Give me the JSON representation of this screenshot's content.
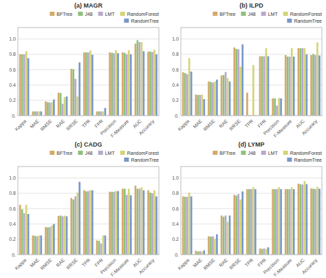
{
  "chart_data": [
    {
      "type": "bar",
      "title": "(a) MAGR",
      "categories": [
        "Kappa",
        "MAE",
        "RMSE",
        "RAE",
        "RRSE",
        "TPR",
        "FPR",
        "Precision",
        "F-Measure",
        "AUC",
        "Accuracy"
      ],
      "series": [
        {
          "name": "BFTree",
          "color": "#d4a96a",
          "values": [
            0.8,
            0.055,
            0.185,
            0.3,
            0.61,
            0.825,
            0.055,
            0.825,
            0.825,
            0.94,
            0.835
          ]
        },
        {
          "name": "J48",
          "color": "#8dc07c",
          "values": [
            0.8,
            0.055,
            0.175,
            0.295,
            0.605,
            0.825,
            0.055,
            0.82,
            0.82,
            0.985,
            0.835
          ]
        },
        {
          "name": "LMT",
          "color": "#b8a8cc",
          "values": [
            0.8,
            0.055,
            0.17,
            0.155,
            0.48,
            0.825,
            0.055,
            0.815,
            0.8,
            0.96,
            0.83
          ]
        },
        {
          "name": "RandomForest",
          "color": "#d4d478",
          "values": [
            0.84,
            0.055,
            0.175,
            0.24,
            0.25,
            0.85,
            0.055,
            0.855,
            0.855,
            0.96,
            0.86
          ]
        },
        {
          "name": "RandomTree",
          "color": "#7898c8",
          "values": [
            0.75,
            0.055,
            0.21,
            0.25,
            0.695,
            0.795,
            0.1,
            0.815,
            0.8,
            0.84,
            0.8
          ]
        }
      ],
      "ylim": [
        0,
        1.15
      ],
      "yticks": [
        {
          "value": 0,
          "label": "0."
        },
        0.2,
        0.4,
        0.6,
        0.8,
        {
          "value": 1,
          "label": "1.0"
        }
      ],
      "grid": true,
      "legend": "upper right"
    },
    {
      "type": "bar",
      "title": "(b) ILPD",
      "categories": [
        "Kappa",
        "MAE",
        "RMSE",
        "RAE",
        "RRSE",
        "TPR",
        "FPR",
        "Precision",
        "F-Measure",
        "AUC",
        "Accuracy"
      ],
      "series": [
        {
          "name": "BFTree",
          "color": "#d4a96a",
          "values": [
            0.565,
            0.275,
            0.445,
            0.525,
            0.89,
            0.3,
            0.775,
            0.225,
            0.79,
            0.88,
            0.79
          ]
        },
        {
          "name": "J48",
          "color": "#8dc07c",
          "values": [
            0.555,
            0.27,
            0.44,
            0.53,
            0.87,
            0.005,
            0.775,
            0.225,
            0.77,
            0.88,
            0.805
          ]
        },
        {
          "name": "LMT",
          "color": "#b8a8cc",
          "values": [
            0.54,
            0.27,
            0.43,
            0.57,
            0.865,
            0.005,
            0.775,
            0.13,
            0.77,
            0.88,
            0.79
          ]
        },
        {
          "name": "RandomForest",
          "color": "#d4d478",
          "values": [
            0.75,
            0.275,
            0.445,
            0.49,
            0.64,
            0.66,
            0.88,
            0.23,
            0.88,
            0.88,
            0.955
          ]
        },
        {
          "name": "RandomTree",
          "color": "#7898c8",
          "values": [
            0.575,
            0.215,
            0.47,
            0.445,
            0.93,
            0.005,
            0.775,
            0.225,
            0.77,
            0.8,
            0.785
          ]
        }
      ],
      "ylim": [
        0,
        1.15
      ],
      "yticks": [
        {
          "value": 0,
          "label": "0."
        },
        0.2,
        0.4,
        0.6,
        0.8,
        {
          "value": 1,
          "label": "1.0"
        }
      ],
      "grid": true,
      "legend": "upper right"
    },
    {
      "type": "bar",
      "title": "(c) CADG",
      "categories": [
        "Kappa",
        "MAE",
        "RMSE",
        "RAE",
        "RRSE",
        "TPR",
        "FPR",
        "Precision",
        "F-Measure",
        "AUC",
        "Accuracy"
      ],
      "series": [
        {
          "name": "BFTree",
          "color": "#d4a96a",
          "values": [
            0.65,
            0.25,
            0.36,
            0.505,
            0.74,
            0.84,
            0.185,
            0.82,
            0.86,
            0.9,
            0.84
          ]
        },
        {
          "name": "J48",
          "color": "#8dc07c",
          "values": [
            0.59,
            0.245,
            0.355,
            0.51,
            0.72,
            0.825,
            0.18,
            0.82,
            0.86,
            0.86,
            0.81
          ]
        },
        {
          "name": "LMT",
          "color": "#b8a8cc",
          "values": [
            0.54,
            0.24,
            0.36,
            0.5,
            0.76,
            0.83,
            0.145,
            0.82,
            0.78,
            0.86,
            0.8
          ]
        },
        {
          "name": "RandomForest",
          "color": "#d4d478",
          "values": [
            0.65,
            0.25,
            0.38,
            0.51,
            0.81,
            0.84,
            0.25,
            0.83,
            0.86,
            0.88,
            0.84
          ]
        },
        {
          "name": "RandomTree",
          "color": "#7898c8",
          "values": [
            0.53,
            0.25,
            0.4,
            0.5,
            0.95,
            0.84,
            0.25,
            0.83,
            0.775,
            0.84,
            0.76
          ]
        }
      ],
      "ylim": [
        0,
        1.15
      ],
      "yticks": [
        {
          "value": 0,
          "label": "0."
        },
        0.2,
        0.4,
        0.6,
        0.8,
        {
          "value": 1,
          "label": "1.0"
        }
      ],
      "grid": true,
      "legend": "upper right"
    },
    {
      "type": "bar",
      "title": "(d) LYMP",
      "categories": [
        "Kappa",
        "MAE",
        "RMSE",
        "RAE",
        "RRSE",
        "TPR",
        "FPR",
        "Precision",
        "F-Measure",
        "AUC",
        "Accuracy"
      ],
      "series": [
        {
          "name": "BFTree",
          "color": "#d4a96a",
          "values": [
            0.76,
            0.05,
            0.24,
            0.51,
            0.78,
            0.855,
            0.08,
            0.855,
            0.855,
            0.925,
            0.865
          ]
        },
        {
          "name": "J48",
          "color": "#8dc07c",
          "values": [
            0.755,
            0.04,
            0.235,
            0.495,
            0.77,
            0.855,
            0.075,
            0.855,
            0.855,
            0.92,
            0.86
          ]
        },
        {
          "name": "LMT",
          "color": "#b8a8cc",
          "values": [
            0.755,
            0.045,
            0.24,
            0.51,
            0.79,
            0.855,
            0.08,
            0.855,
            0.855,
            0.915,
            0.855
          ]
        },
        {
          "name": "RandomForest",
          "color": "#d4d478",
          "values": [
            0.81,
            0.04,
            0.21,
            0.43,
            0.72,
            0.88,
            0.075,
            0.88,
            0.88,
            0.96,
            0.885
          ]
        },
        {
          "name": "RandomTree",
          "color": "#7898c8",
          "values": [
            0.76,
            0.055,
            0.265,
            0.51,
            0.825,
            0.855,
            0.095,
            0.855,
            0.855,
            0.92,
            0.86
          ]
        }
      ],
      "ylim": [
        0,
        1.15
      ],
      "yticks": [
        {
          "value": 0,
          "label": "0."
        },
        0.2,
        0.4,
        0.6,
        0.8,
        {
          "value": 1,
          "label": "1.0"
        }
      ],
      "grid": true,
      "legend": "upper right"
    }
  ]
}
